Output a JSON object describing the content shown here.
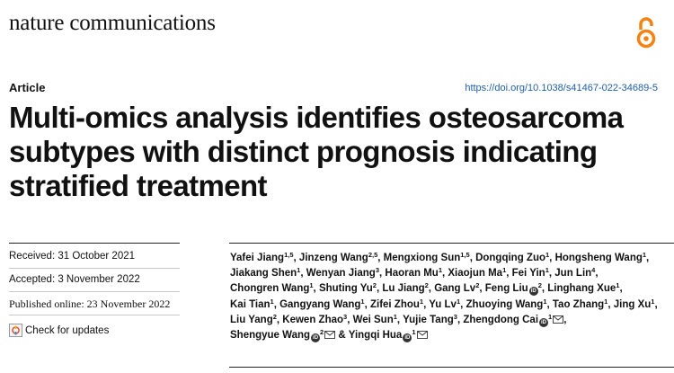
{
  "journal": "nature communications",
  "article_type": "Article",
  "doi": "https://doi.org/10.1038/s41467-022-34689-5",
  "title": "Multi-omics analysis identifies osteosarcoma subtypes with distinct prognosis indicating stratified treatment",
  "received": "Received: 31 October 2021",
  "accepted": "Accepted: 3 November 2022",
  "published": "Published online: 23 November 2022",
  "check_updates": "Check for updates",
  "icons": {
    "open_access": "open-access-icon",
    "orcid": "orcid-icon",
    "email": "email-icon",
    "check": "check-for-updates-icon"
  },
  "authors": [
    {
      "name": "Yafei Jiang",
      "aff": "1,5",
      "sep": ", "
    },
    {
      "name": "Jinzeng Wang",
      "aff": "2,5",
      "sep": ", "
    },
    {
      "name": "Mengxiong Sun",
      "aff": "1,5",
      "sep": ", "
    },
    {
      "name": "Dongqing Zuo",
      "aff": "1",
      "sep": ", "
    },
    {
      "name": "Hongsheng Wang",
      "aff": "1",
      "sep": ", "
    },
    {
      "name": "Jiakang Shen",
      "aff": "1",
      "sep": ", "
    },
    {
      "name": "Wenyan Jiang",
      "aff": "3",
      "sep": ", "
    },
    {
      "name": "Haoran Mu",
      "aff": "1",
      "sep": ", "
    },
    {
      "name": "Xiaojun Ma",
      "aff": "1",
      "sep": ", "
    },
    {
      "name": "Fei Yin",
      "aff": "1",
      "sep": ", "
    },
    {
      "name": "Jun Lin",
      "aff": "4",
      "sep": ", "
    },
    {
      "name": "Chongren Wang",
      "aff": "1",
      "sep": ", "
    },
    {
      "name": "Shuting Yu",
      "aff": "2",
      "sep": ", "
    },
    {
      "name": "Lu Jiang",
      "aff": "2",
      "sep": ", "
    },
    {
      "name": "Gang Lv",
      "aff": "2",
      "sep": ", "
    },
    {
      "name": "Feng Liu",
      "aff": "2",
      "orcid": true,
      "sep": ", "
    },
    {
      "name": "Linghang Xue",
      "aff": "1",
      "sep": ", "
    },
    {
      "name": "Kai Tian",
      "aff": "1",
      "sep": ", "
    },
    {
      "name": "Gangyang Wang",
      "aff": "1",
      "sep": ", "
    },
    {
      "name": "Zifei Zhou",
      "aff": "1",
      "sep": ", "
    },
    {
      "name": "Yu Lv",
      "aff": "1",
      "sep": ", "
    },
    {
      "name": "Zhuoying Wang",
      "aff": "1",
      "sep": ", "
    },
    {
      "name": "Tao Zhang",
      "aff": "1",
      "sep": ", "
    },
    {
      "name": "Jing Xu",
      "aff": "1",
      "sep": ", "
    },
    {
      "name": "Liu Yang",
      "aff": "2",
      "sep": ", "
    },
    {
      "name": "Kewen Zhao",
      "aff": "3",
      "sep": ", "
    },
    {
      "name": "Wei Sun",
      "aff": "1",
      "sep": ", "
    },
    {
      "name": "Yujie Tang",
      "aff": "3",
      "sep": ", "
    },
    {
      "name": "Zhengdong Cai",
      "aff": "1",
      "orcid": true,
      "email": true,
      "sep": ", "
    },
    {
      "name": "Shengyue Wang",
      "aff": "2",
      "orcid": true,
      "email": true,
      "sep": " & "
    },
    {
      "name": "Yingqi Hua",
      "aff": "1",
      "orcid": true,
      "email": true,
      "sep": ""
    }
  ]
}
